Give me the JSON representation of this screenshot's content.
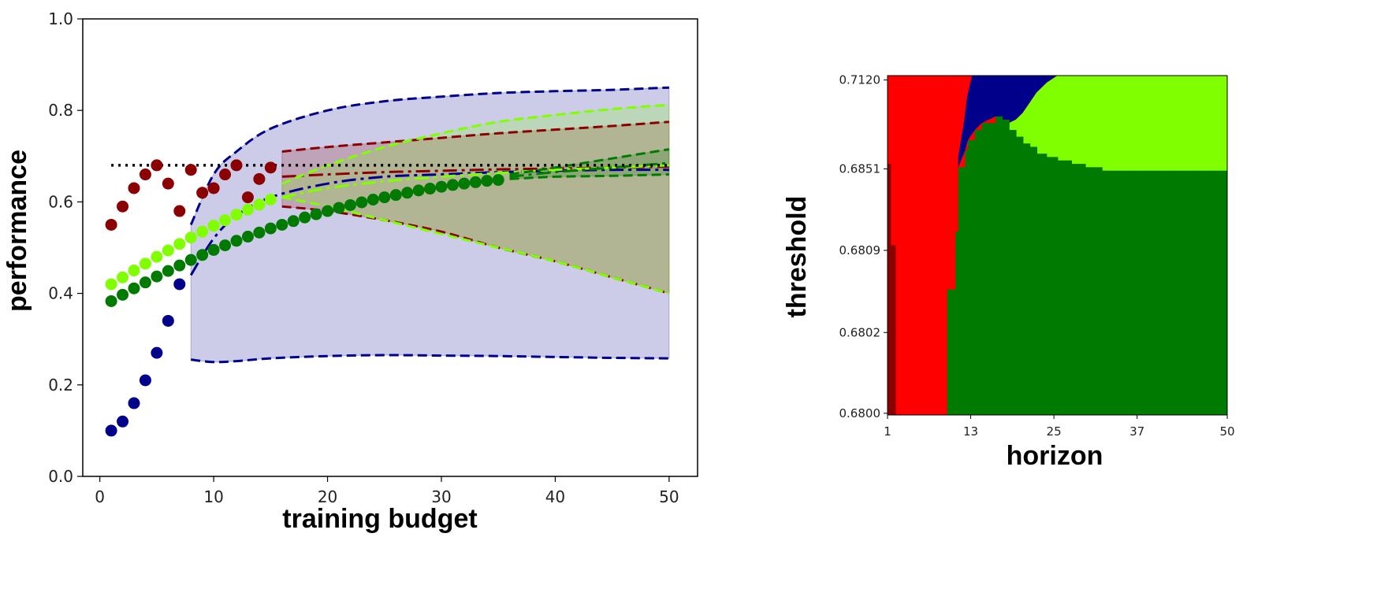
{
  "chart_data": [
    {
      "type": "scatter",
      "xlabel": "training budget",
      "ylabel": "performance",
      "xlim": [
        -1.5,
        52.5
      ],
      "ylim": [
        0,
        1
      ],
      "xticks": [
        "0",
        "10",
        "20",
        "30",
        "40",
        "50"
      ],
      "yticks": [
        "0.0",
        "0.2",
        "0.4",
        "0.6",
        "0.8",
        "1.0"
      ],
      "grid": false,
      "reference_line": {
        "y": 0.68,
        "x_range": [
          1,
          50
        ],
        "style": "dotted",
        "color": "#000000"
      },
      "series": [
        {
          "color": "#00008b",
          "points_x": [
            1,
            2,
            3,
            4,
            5,
            6,
            7
          ],
          "points_y": [
            0.1,
            0.12,
            0.16,
            0.21,
            0.27,
            0.34,
            0.42
          ],
          "forecast_x": [
            8,
            10,
            12,
            15,
            20,
            25,
            30,
            35,
            40,
            45,
            50
          ],
          "forecast_mean": [
            0.44,
            0.52,
            0.57,
            0.61,
            0.64,
            0.655,
            0.66,
            0.665,
            0.668,
            0.67,
            0.67
          ],
          "forecast_upper": [
            0.55,
            0.66,
            0.71,
            0.76,
            0.8,
            0.82,
            0.83,
            0.838,
            0.842,
            0.845,
            0.85
          ],
          "forecast_lower": [
            0.255,
            0.25,
            0.252,
            0.258,
            0.263,
            0.265,
            0.264,
            0.263,
            0.261,
            0.259,
            0.258
          ]
        },
        {
          "color": "#8b0000",
          "points_x": [
            1,
            2,
            3,
            4,
            5,
            6,
            7,
            8,
            9,
            10,
            11,
            12,
            13,
            14,
            15
          ],
          "points_y": [
            0.55,
            0.59,
            0.63,
            0.66,
            0.68,
            0.64,
            0.58,
            0.67,
            0.62,
            0.63,
            0.66,
            0.68,
            0.61,
            0.65,
            0.675
          ],
          "forecast_x": [
            16,
            20,
            25,
            30,
            35,
            40,
            45,
            50
          ],
          "forecast_mean": [
            0.655,
            0.66,
            0.665,
            0.668,
            0.671,
            0.673,
            0.675,
            0.677
          ],
          "forecast_upper": [
            0.71,
            0.72,
            0.73,
            0.74,
            0.75,
            0.758,
            0.766,
            0.775
          ],
          "forecast_lower": [
            0.59,
            0.58,
            0.56,
            0.535,
            0.5,
            0.47,
            0.435,
            0.4
          ]
        },
        {
          "color": "#7fff00",
          "points_x": [
            1,
            2,
            3,
            4,
            5,
            6,
            7,
            8,
            9,
            10,
            11,
            12,
            13,
            14,
            15
          ],
          "points_y": [
            0.42,
            0.435,
            0.45,
            0.465,
            0.48,
            0.494,
            0.508,
            0.522,
            0.535,
            0.548,
            0.56,
            0.572,
            0.583,
            0.594,
            0.605
          ],
          "forecast_x": [
            16,
            20,
            25,
            30,
            35,
            40,
            45,
            50
          ],
          "forecast_mean": [
            0.61,
            0.63,
            0.645,
            0.655,
            0.663,
            0.67,
            0.675,
            0.68
          ],
          "forecast_upper": [
            0.64,
            0.68,
            0.72,
            0.75,
            0.775,
            0.79,
            0.803,
            0.812
          ],
          "forecast_lower": [
            0.61,
            0.59,
            0.56,
            0.53,
            0.5,
            0.47,
            0.435,
            0.4
          ]
        },
        {
          "color": "#007a00",
          "points_x": [
            1,
            2,
            3,
            4,
            5,
            6,
            7,
            8,
            9,
            10,
            11,
            12,
            13,
            14,
            15,
            16,
            17,
            18,
            19,
            20,
            21,
            22,
            23,
            24,
            25,
            26,
            27,
            28,
            29,
            30,
            31,
            32,
            33,
            34,
            35
          ],
          "points_y": [
            0.383,
            0.397,
            0.411,
            0.424,
            0.437,
            0.449,
            0.461,
            0.473,
            0.484,
            0.495,
            0.505,
            0.515,
            0.524,
            0.533,
            0.542,
            0.55,
            0.558,
            0.566,
            0.573,
            0.58,
            0.587,
            0.593,
            0.599,
            0.605,
            0.61,
            0.615,
            0.62,
            0.625,
            0.629,
            0.633,
            0.637,
            0.64,
            0.643,
            0.646,
            0.648
          ],
          "forecast_x": [
            36,
            40,
            45,
            50
          ],
          "forecast_mean": [
            0.655,
            0.665,
            0.675,
            0.685
          ],
          "forecast_upper": [
            0.66,
            0.675,
            0.695,
            0.715
          ],
          "forecast_lower": [
            0.65,
            0.655,
            0.657,
            0.66
          ]
        }
      ]
    },
    {
      "type": "heatmap",
      "xlabel": "horizon",
      "ylabel": "threshold",
      "xticks": [
        "1",
        "13",
        "25",
        "37",
        "50"
      ],
      "yticks": [
        "0.7120",
        "0.6851",
        "0.6809",
        "0.6802",
        "0.6800"
      ],
      "colors": {
        "dark_red": "#8b0000",
        "red": "#ff0000",
        "navy": "#00008b",
        "lime": "#7fff00",
        "green": "#007a00"
      },
      "green_boundary": [
        [
          10,
          0.63
        ],
        [
          10.8,
          0.46
        ],
        [
          11.2,
          0.27
        ],
        [
          12.2,
          0.22
        ],
        [
          12.6,
          0.19
        ],
        [
          13.6,
          0.16
        ],
        [
          14.6,
          0.14
        ],
        [
          16.6,
          0.12
        ],
        [
          17.6,
          0.13
        ],
        [
          18.6,
          0.16
        ],
        [
          19.6,
          0.18
        ],
        [
          20.6,
          0.2
        ],
        [
          21.6,
          0.21
        ],
        [
          22.6,
          0.23
        ],
        [
          24,
          0.24
        ],
        [
          25.6,
          0.25
        ],
        [
          27.6,
          0.26
        ],
        [
          29.6,
          0.27
        ],
        [
          32,
          0.28
        ],
        [
          50,
          0.3
        ]
      ],
      "navy_lime_boundary": [
        [
          25.5,
          0.0
        ],
        [
          24,
          0.02
        ],
        [
          22.5,
          0.05
        ],
        [
          21.5,
          0.08
        ],
        [
          20.5,
          0.11
        ],
        [
          19.5,
          0.13
        ],
        [
          18.5,
          0.14
        ],
        [
          17.6,
          0.13
        ],
        [
          17,
          0.12
        ]
      ],
      "red_navy_boundary": [
        [
          13.2,
          0.0
        ],
        [
          12.5,
          0.06
        ],
        [
          12,
          0.14
        ],
        [
          11.6,
          0.19
        ],
        [
          11.2,
          0.24
        ]
      ],
      "dark_red_band": [
        [
          1,
          0.26
        ],
        [
          1.5,
          0.26
        ],
        [
          1.5,
          0.5
        ],
        [
          2.2,
          0.5
        ],
        [
          2.2,
          1.0
        ],
        [
          1,
          1.0
        ]
      ]
    }
  ]
}
